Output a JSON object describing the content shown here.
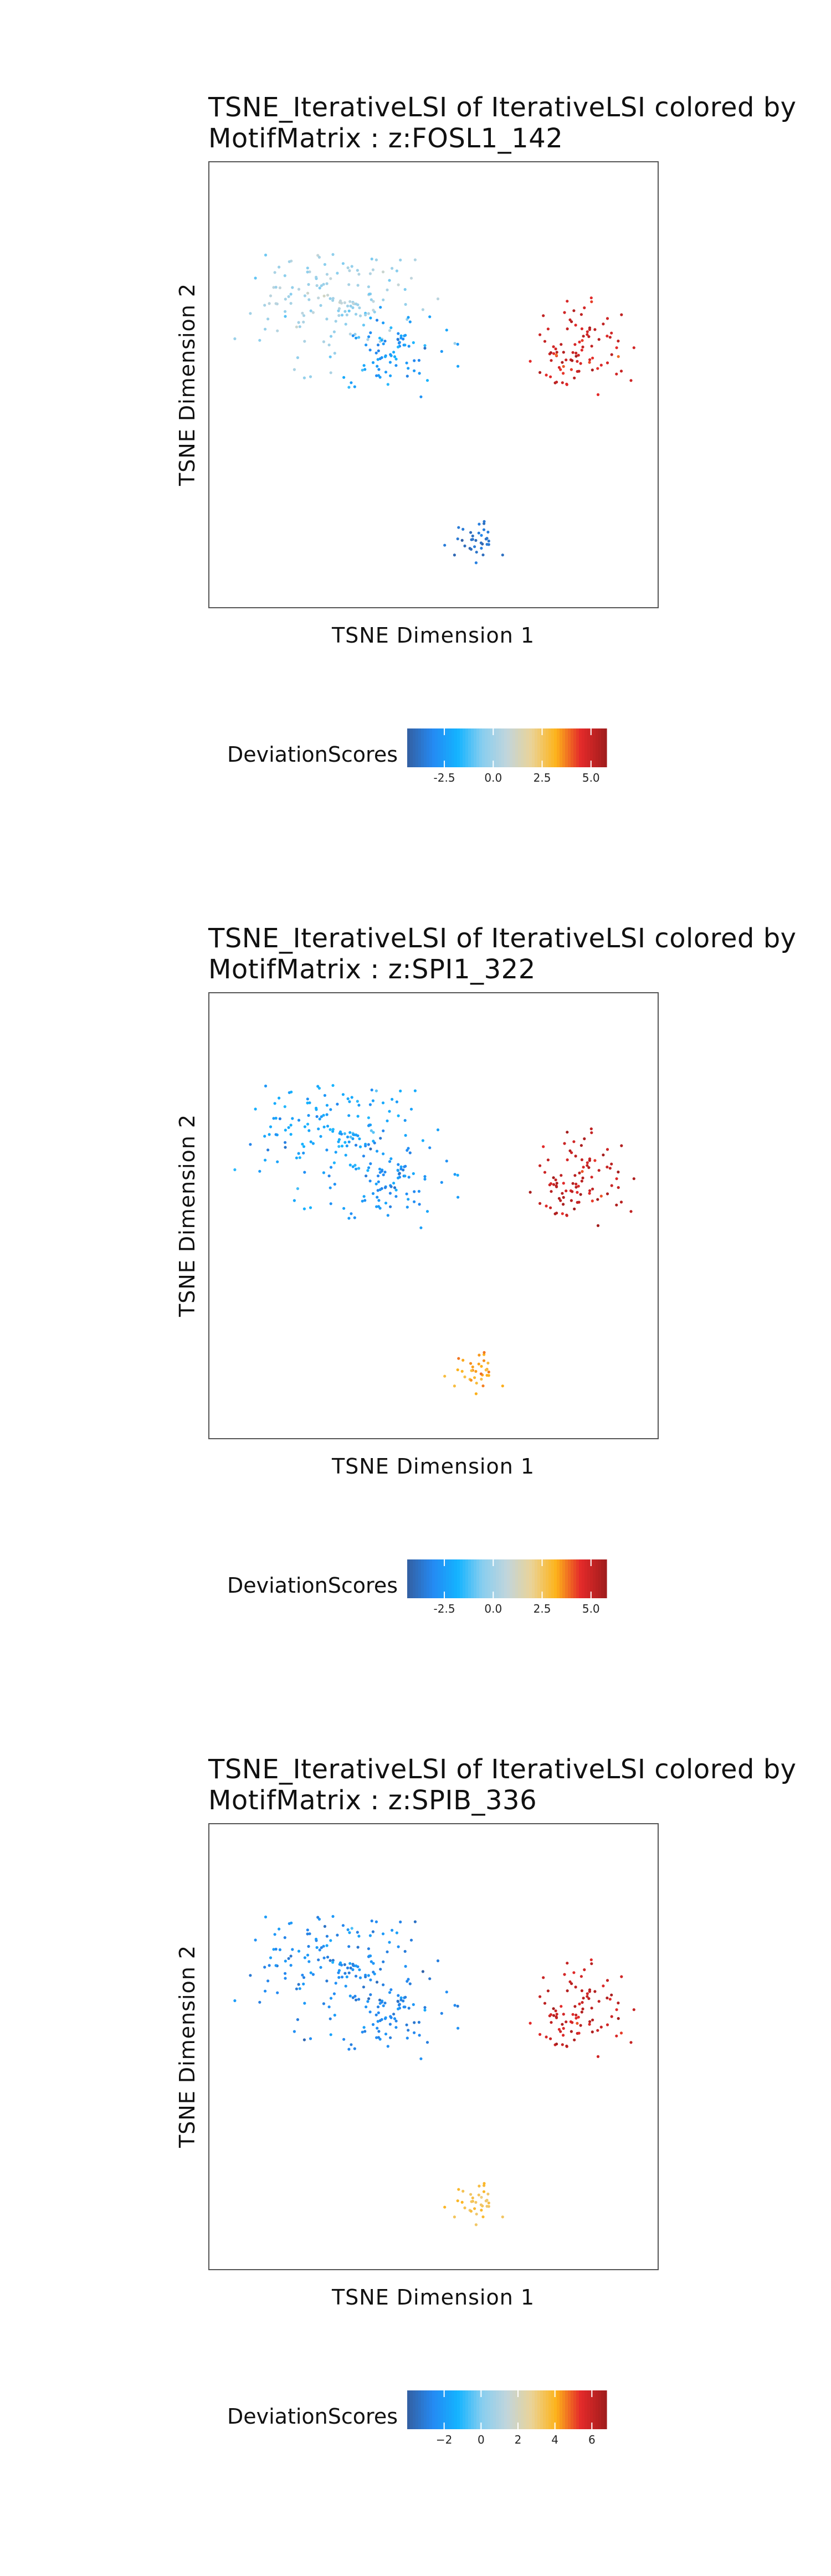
{
  "colorbar_colors": [
    "#3361A5",
    "#248AF3",
    "#14B3FF",
    "#88CEEF",
    "#C1D5DC",
    "#EAD397",
    "#FDB31A",
    "#E42A2A",
    "#A31D1D"
  ],
  "chart_data": [
    {
      "type": "scatter",
      "title_line1": "TSNE_IterativeLSI of IterativeLSI colored by",
      "title_line2": "MotifMatrix : z:FOSL1_142",
      "xlabel": "TSNE Dimension 1",
      "ylabel": "TSNE Dimension 2",
      "legend_title": "DeviationScores",
      "color_range": [
        -4.4,
        5.8
      ],
      "ticks": [
        -2.5,
        0.0,
        2.5,
        5.0
      ],
      "tick_labels": [
        "-2.5",
        "0.0",
        "2.5",
        "5.0"
      ],
      "groups": [
        {
          "cluster": "top-left",
          "center": [
            -18,
            13
          ],
          "spread": [
            7,
            5
          ],
          "n": 150,
          "score": 0.0,
          "score_sd": 0.5
        },
        {
          "cluster": "middle",
          "center": [
            -8,
            4
          ],
          "spread": [
            4,
            4
          ],
          "n": 80,
          "score": -2.6,
          "score_sd": 0.5
        },
        {
          "cluster": "right",
          "center": [
            26,
            4
          ],
          "spread": [
            4,
            4
          ],
          "n": 90,
          "score": 5.0,
          "score_sd": 0.4
        },
        {
          "cluster": "bottom",
          "center": [
            8,
            -32
          ],
          "spread": [
            2,
            2
          ],
          "n": 35,
          "score": -3.8,
          "score_sd": 0.3
        }
      ]
    },
    {
      "type": "scatter",
      "title_line1": "TSNE_IterativeLSI of IterativeLSI colored by",
      "title_line2": "MotifMatrix : z:SPI1_322",
      "xlabel": "TSNE Dimension 1",
      "ylabel": "TSNE Dimension 2",
      "legend_title": "DeviationScores",
      "color_range": [
        -4.4,
        5.8
      ],
      "ticks": [
        -2.5,
        0.0,
        2.5,
        5.0
      ],
      "tick_labels": [
        "-2.5",
        "0.0",
        "2.5",
        "5.0"
      ],
      "groups": [
        {
          "cluster": "top-left",
          "center": [
            -18,
            13
          ],
          "spread": [
            7,
            5
          ],
          "n": 150,
          "score": -2.3,
          "score_sd": 0.5
        },
        {
          "cluster": "middle",
          "center": [
            -8,
            4
          ],
          "spread": [
            4,
            4
          ],
          "n": 80,
          "score": -2.8,
          "score_sd": 0.4
        },
        {
          "cluster": "right",
          "center": [
            26,
            4
          ],
          "spread": [
            4,
            4
          ],
          "n": 90,
          "score": 5.2,
          "score_sd": 0.4
        },
        {
          "cluster": "bottom",
          "center": [
            8,
            -32
          ],
          "spread": [
            2,
            2
          ],
          "n": 35,
          "score": 3.2,
          "score_sd": 0.3
        }
      ]
    },
    {
      "type": "scatter",
      "title_line1": "TSNE_IterativeLSI of IterativeLSI colored by",
      "title_line2": "MotifMatrix : z:SPIB_336",
      "xlabel": "TSNE Dimension 1",
      "ylabel": "TSNE Dimension 2",
      "legend_title": "DeviationScores",
      "color_range": [
        -4.0,
        6.8
      ],
      "ticks": [
        -2,
        0,
        2,
        4,
        6
      ],
      "tick_labels": [
        "−2",
        "0",
        "2",
        "4",
        "6"
      ],
      "groups": [
        {
          "cluster": "top-left",
          "center": [
            -18,
            13
          ],
          "spread": [
            7,
            5
          ],
          "n": 150,
          "score": -2.5,
          "score_sd": 0.5
        },
        {
          "cluster": "middle",
          "center": [
            -8,
            4
          ],
          "spread": [
            4,
            4
          ],
          "n": 80,
          "score": -2.8,
          "score_sd": 0.4
        },
        {
          "cluster": "right",
          "center": [
            26,
            4
          ],
          "spread": [
            4,
            4
          ],
          "n": 90,
          "score": 6.0,
          "score_sd": 0.4
        },
        {
          "cluster": "bottom",
          "center": [
            8,
            -32
          ],
          "spread": [
            2,
            2
          ],
          "n": 35,
          "score": 3.5,
          "score_sd": 0.3
        }
      ]
    }
  ]
}
